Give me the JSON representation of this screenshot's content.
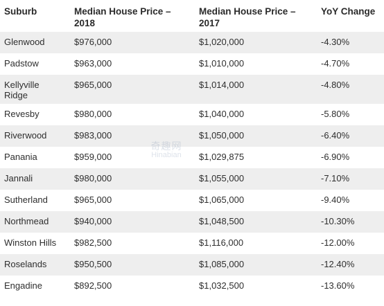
{
  "table": {
    "headers": [
      "Suburb",
      "Median House Price – 2018",
      "Median House Price – 2017",
      "YoY Change"
    ],
    "rows": [
      [
        "Glenwood",
        "$976,000",
        "$1,020,000",
        "-4.30%"
      ],
      [
        "Padstow",
        "$963,000",
        "$1,010,000",
        "-4.70%"
      ],
      [
        "Kellyville Ridge",
        "$965,000",
        "$1,014,000",
        "-4.80%"
      ],
      [
        "Revesby",
        "$980,000",
        "$1,040,000",
        "-5.80%"
      ],
      [
        "Riverwood",
        "$983,000",
        "$1,050,000",
        "-6.40%"
      ],
      [
        "Panania",
        "$959,000",
        "$1,029,875",
        "-6.90%"
      ],
      [
        "Jannali",
        "$980,000",
        "$1,055,000",
        "-7.10%"
      ],
      [
        "Sutherland",
        "$965,000",
        "$1,065,000",
        "-9.40%"
      ],
      [
        "Northmead",
        "$940,000",
        "$1,048,500",
        "-10.30%"
      ],
      [
        "Winston Hills",
        "$982,500",
        "$1,116,000",
        "-12.00%"
      ],
      [
        "Roselands",
        "$950,500",
        "$1,085,000",
        "-12.40%"
      ],
      [
        "Engadine",
        "$892,500",
        "$1,032,500",
        "-13.60%"
      ]
    ]
  },
  "watermark": {
    "line1": "奇趣网",
    "line2": "Hinabian"
  },
  "colors": {
    "stripe": "#eeeeee",
    "text": "#2e2e2e"
  }
}
